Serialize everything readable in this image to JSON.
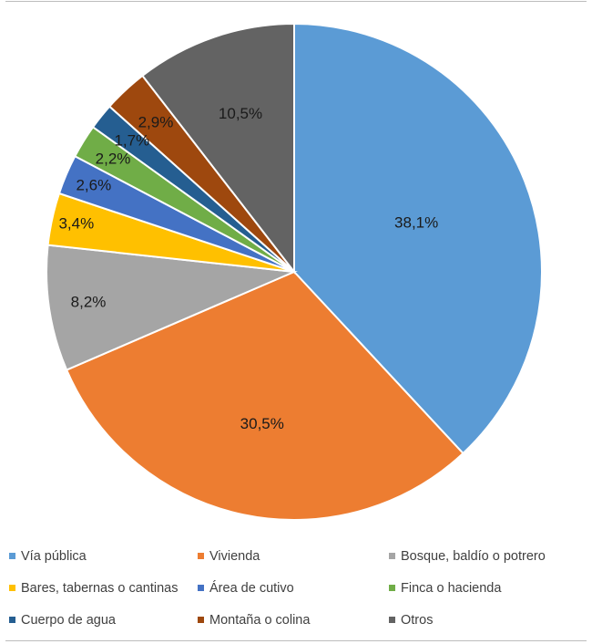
{
  "chart_data": {
    "type": "pie",
    "slices": [
      {
        "label": "Vía pública",
        "value": 38.1,
        "display": "38,1%",
        "color": "#5b9bd5"
      },
      {
        "label": "Vivienda",
        "value": 30.5,
        "display": "30,5%",
        "color": "#ed7d31"
      },
      {
        "label": "Bosque, baldío o potrero",
        "value": 8.2,
        "display": "8,2%",
        "color": "#a5a5a5"
      },
      {
        "label": "Bares, tabernas o cantinas",
        "value": 3.4,
        "display": "3,4%",
        "color": "#ffc000"
      },
      {
        "label": "Área de cutivo",
        "value": 2.6,
        "display": "2,6%",
        "color": "#4472c4"
      },
      {
        "label": "Finca o hacienda",
        "value": 2.2,
        "display": "2,2%",
        "color": "#70ad47"
      },
      {
        "label": "Cuerpo de agua",
        "value": 1.7,
        "display": "1,7%",
        "color": "#255e91"
      },
      {
        "label": "Montaña o colina",
        "value": 2.9,
        "display": "2,9%",
        "color": "#9e480e"
      },
      {
        "label": "Otros",
        "value": 10.5,
        "display": "10,5%",
        "color": "#636363"
      }
    ],
    "start_angle": "12 o'clock",
    "direction": "clockwise",
    "legend_position": "bottom"
  }
}
